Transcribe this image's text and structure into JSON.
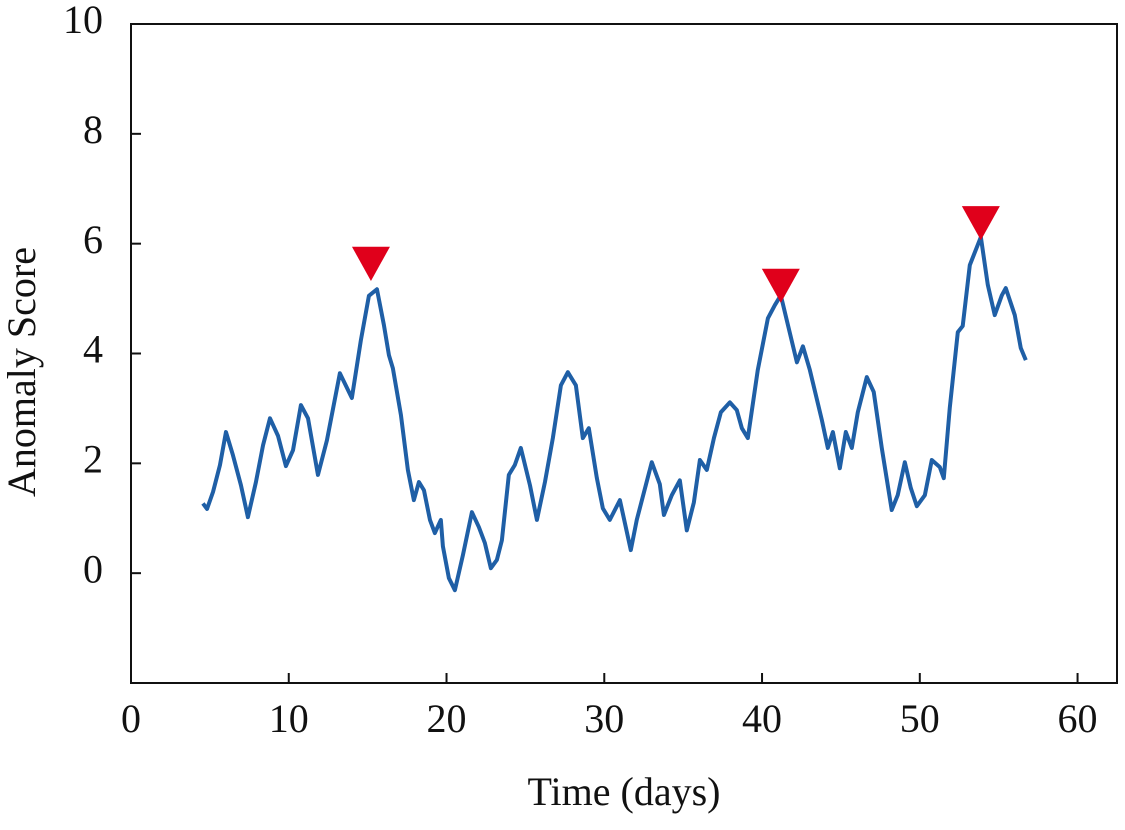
{
  "chart_data": {
    "type": "line",
    "x_label": "Time (days)",
    "y_label": "Anomaly Score",
    "xlim": [
      0,
      62.5
    ],
    "ylim": [
      -2,
      10
    ],
    "xticks": [
      0,
      10,
      20,
      30,
      40,
      50,
      60
    ],
    "yticks": [
      0,
      2,
      4,
      6,
      8,
      10
    ],
    "grid": false,
    "color": "#1f5fa6",
    "x": [
      4.56,
      4.82,
      5.2,
      5.64,
      6.02,
      6.46,
      6.97,
      7.41,
      7.92,
      8.37,
      8.81,
      9.32,
      9.82,
      10.27,
      10.77,
      11.22,
      11.85,
      12.42,
      13.24,
      14.0,
      14.57,
      15.08,
      15.59,
      16.03,
      16.35,
      16.6,
      17.11,
      17.55,
      17.93,
      18.25,
      18.57,
      18.95,
      19.26,
      19.64,
      19.77,
      20.15,
      20.53,
      21.04,
      21.61,
      22.05,
      22.43,
      22.81,
      23.19,
      23.51,
      23.95,
      24.33,
      24.71,
      25.29,
      25.73,
      26.24,
      26.74,
      27.25,
      27.69,
      28.2,
      28.64,
      29.02,
      29.53,
      29.91,
      30.35,
      30.99,
      31.68,
      32.06,
      33.01,
      33.52,
      33.78,
      34.28,
      34.79,
      35.23,
      35.68,
      36.06,
      36.5,
      36.95,
      37.39,
      37.96,
      38.4,
      38.72,
      39.1,
      39.73,
      40.37,
      40.81,
      41.19,
      41.64,
      42.21,
      42.59,
      43.03,
      43.79,
      44.17,
      44.49,
      44.93,
      45.31,
      45.69,
      46.07,
      46.64,
      47.08,
      47.59,
      48.22,
      48.6,
      49.05,
      49.43,
      49.81,
      50.32,
      50.76,
      51.27,
      51.52,
      51.9,
      52.41,
      52.72,
      53.17,
      53.87,
      54.31,
      54.75,
      55.2,
      55.45,
      56.02,
      56.4,
      56.72
    ],
    "values": [
      1.27,
      1.17,
      1.48,
      1.97,
      2.57,
      2.15,
      1.6,
      1.02,
      1.66,
      2.33,
      2.82,
      2.5,
      1.95,
      2.24,
      3.06,
      2.82,
      1.79,
      2.42,
      3.64,
      3.19,
      4.24,
      5.05,
      5.17,
      4.52,
      3.97,
      3.73,
      2.88,
      1.88,
      1.33,
      1.66,
      1.51,
      0.97,
      0.73,
      0.97,
      0.49,
      -0.09,
      -0.31,
      0.33,
      1.11,
      0.84,
      0.55,
      0.09,
      0.24,
      0.6,
      1.79,
      1.97,
      2.28,
      1.6,
      0.97,
      1.66,
      2.46,
      3.42,
      3.66,
      3.42,
      2.46,
      2.64,
      1.73,
      1.18,
      0.97,
      1.33,
      0.42,
      0.97,
      2.02,
      1.62,
      1.06,
      1.42,
      1.69,
      0.78,
      1.29,
      2.06,
      1.88,
      2.46,
      2.93,
      3.11,
      2.97,
      2.64,
      2.46,
      3.7,
      4.64,
      4.88,
      5.06,
      4.52,
      3.84,
      4.13,
      3.7,
      2.79,
      2.28,
      2.57,
      1.91,
      2.57,
      2.28,
      2.93,
      3.57,
      3.3,
      2.28,
      1.15,
      1.42,
      2.02,
      1.55,
      1.22,
      1.42,
      2.06,
      1.93,
      1.73,
      3.01,
      4.39,
      4.5,
      5.61,
      6.12,
      5.25,
      4.7,
      5.06,
      5.19,
      4.7,
      4.1,
      3.88
    ],
    "markers": {
      "color": "#e0001b",
      "x": [
        15.21,
        41.19,
        53.87
      ],
      "values": [
        5.65,
        5.25,
        6.39
      ]
    }
  }
}
